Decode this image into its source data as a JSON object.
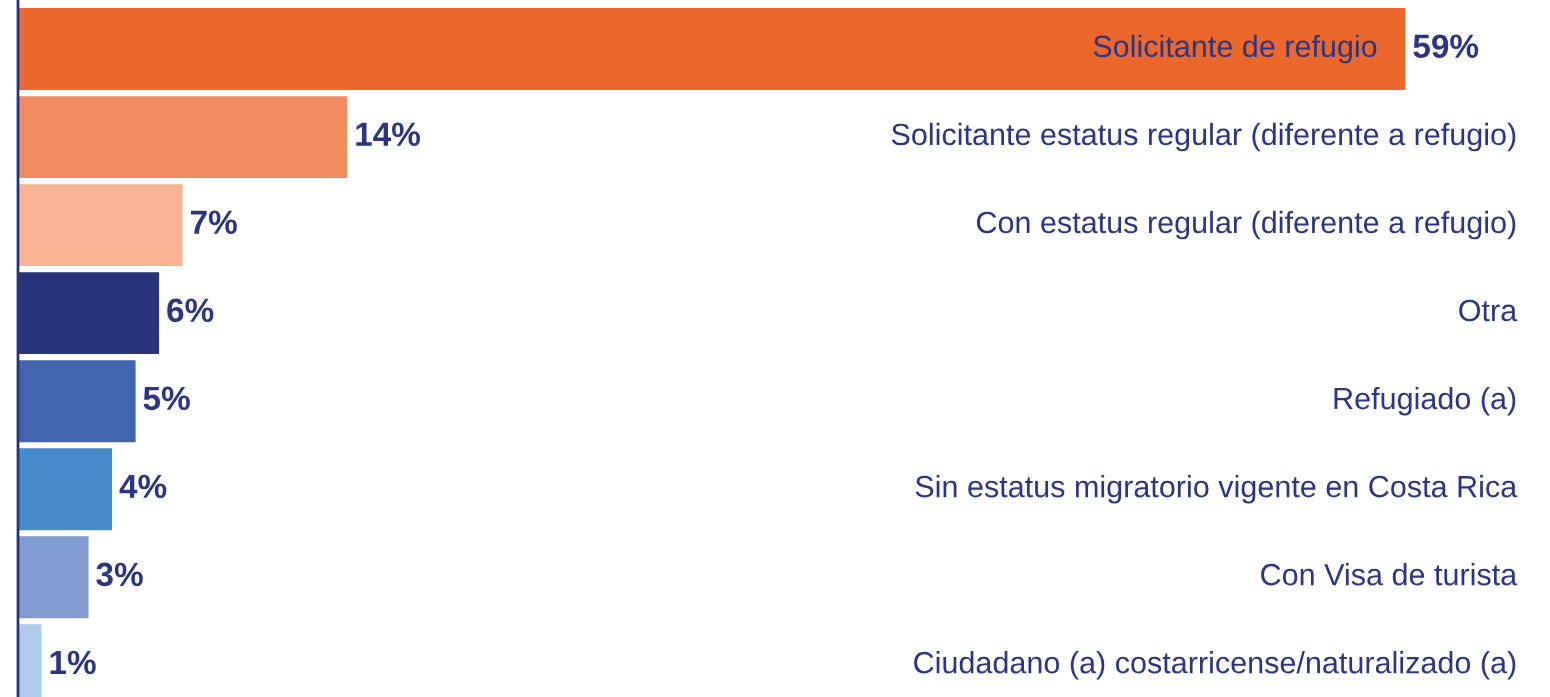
{
  "chart_data": {
    "type": "bar",
    "orientation": "horizontal",
    "categories": [
      "Solicitante de refugio",
      "Solicitante estatus regular (diferente a refugio)",
      "Con estatus regular (diferente a refugio)",
      "Otra",
      "Refugiado (a)",
      "Sin estatus migratorio vigente en Costa Rica",
      "Con Visa de turista",
      "Ciudadano (a) costarricense/naturalizado (a)"
    ],
    "values": [
      59,
      14,
      7,
      6,
      5,
      4,
      3,
      1
    ],
    "value_labels": [
      "59%",
      "14%",
      "7%",
      "6%",
      "5%",
      "4%",
      "3%",
      "1%"
    ],
    "colors": [
      "#ec672c",
      "#f08c5f",
      "#f7b391",
      "#27337a",
      "#4166ae",
      "#458bca",
      "#7f9bd0",
      "#aecbea"
    ],
    "legend": false
  }
}
